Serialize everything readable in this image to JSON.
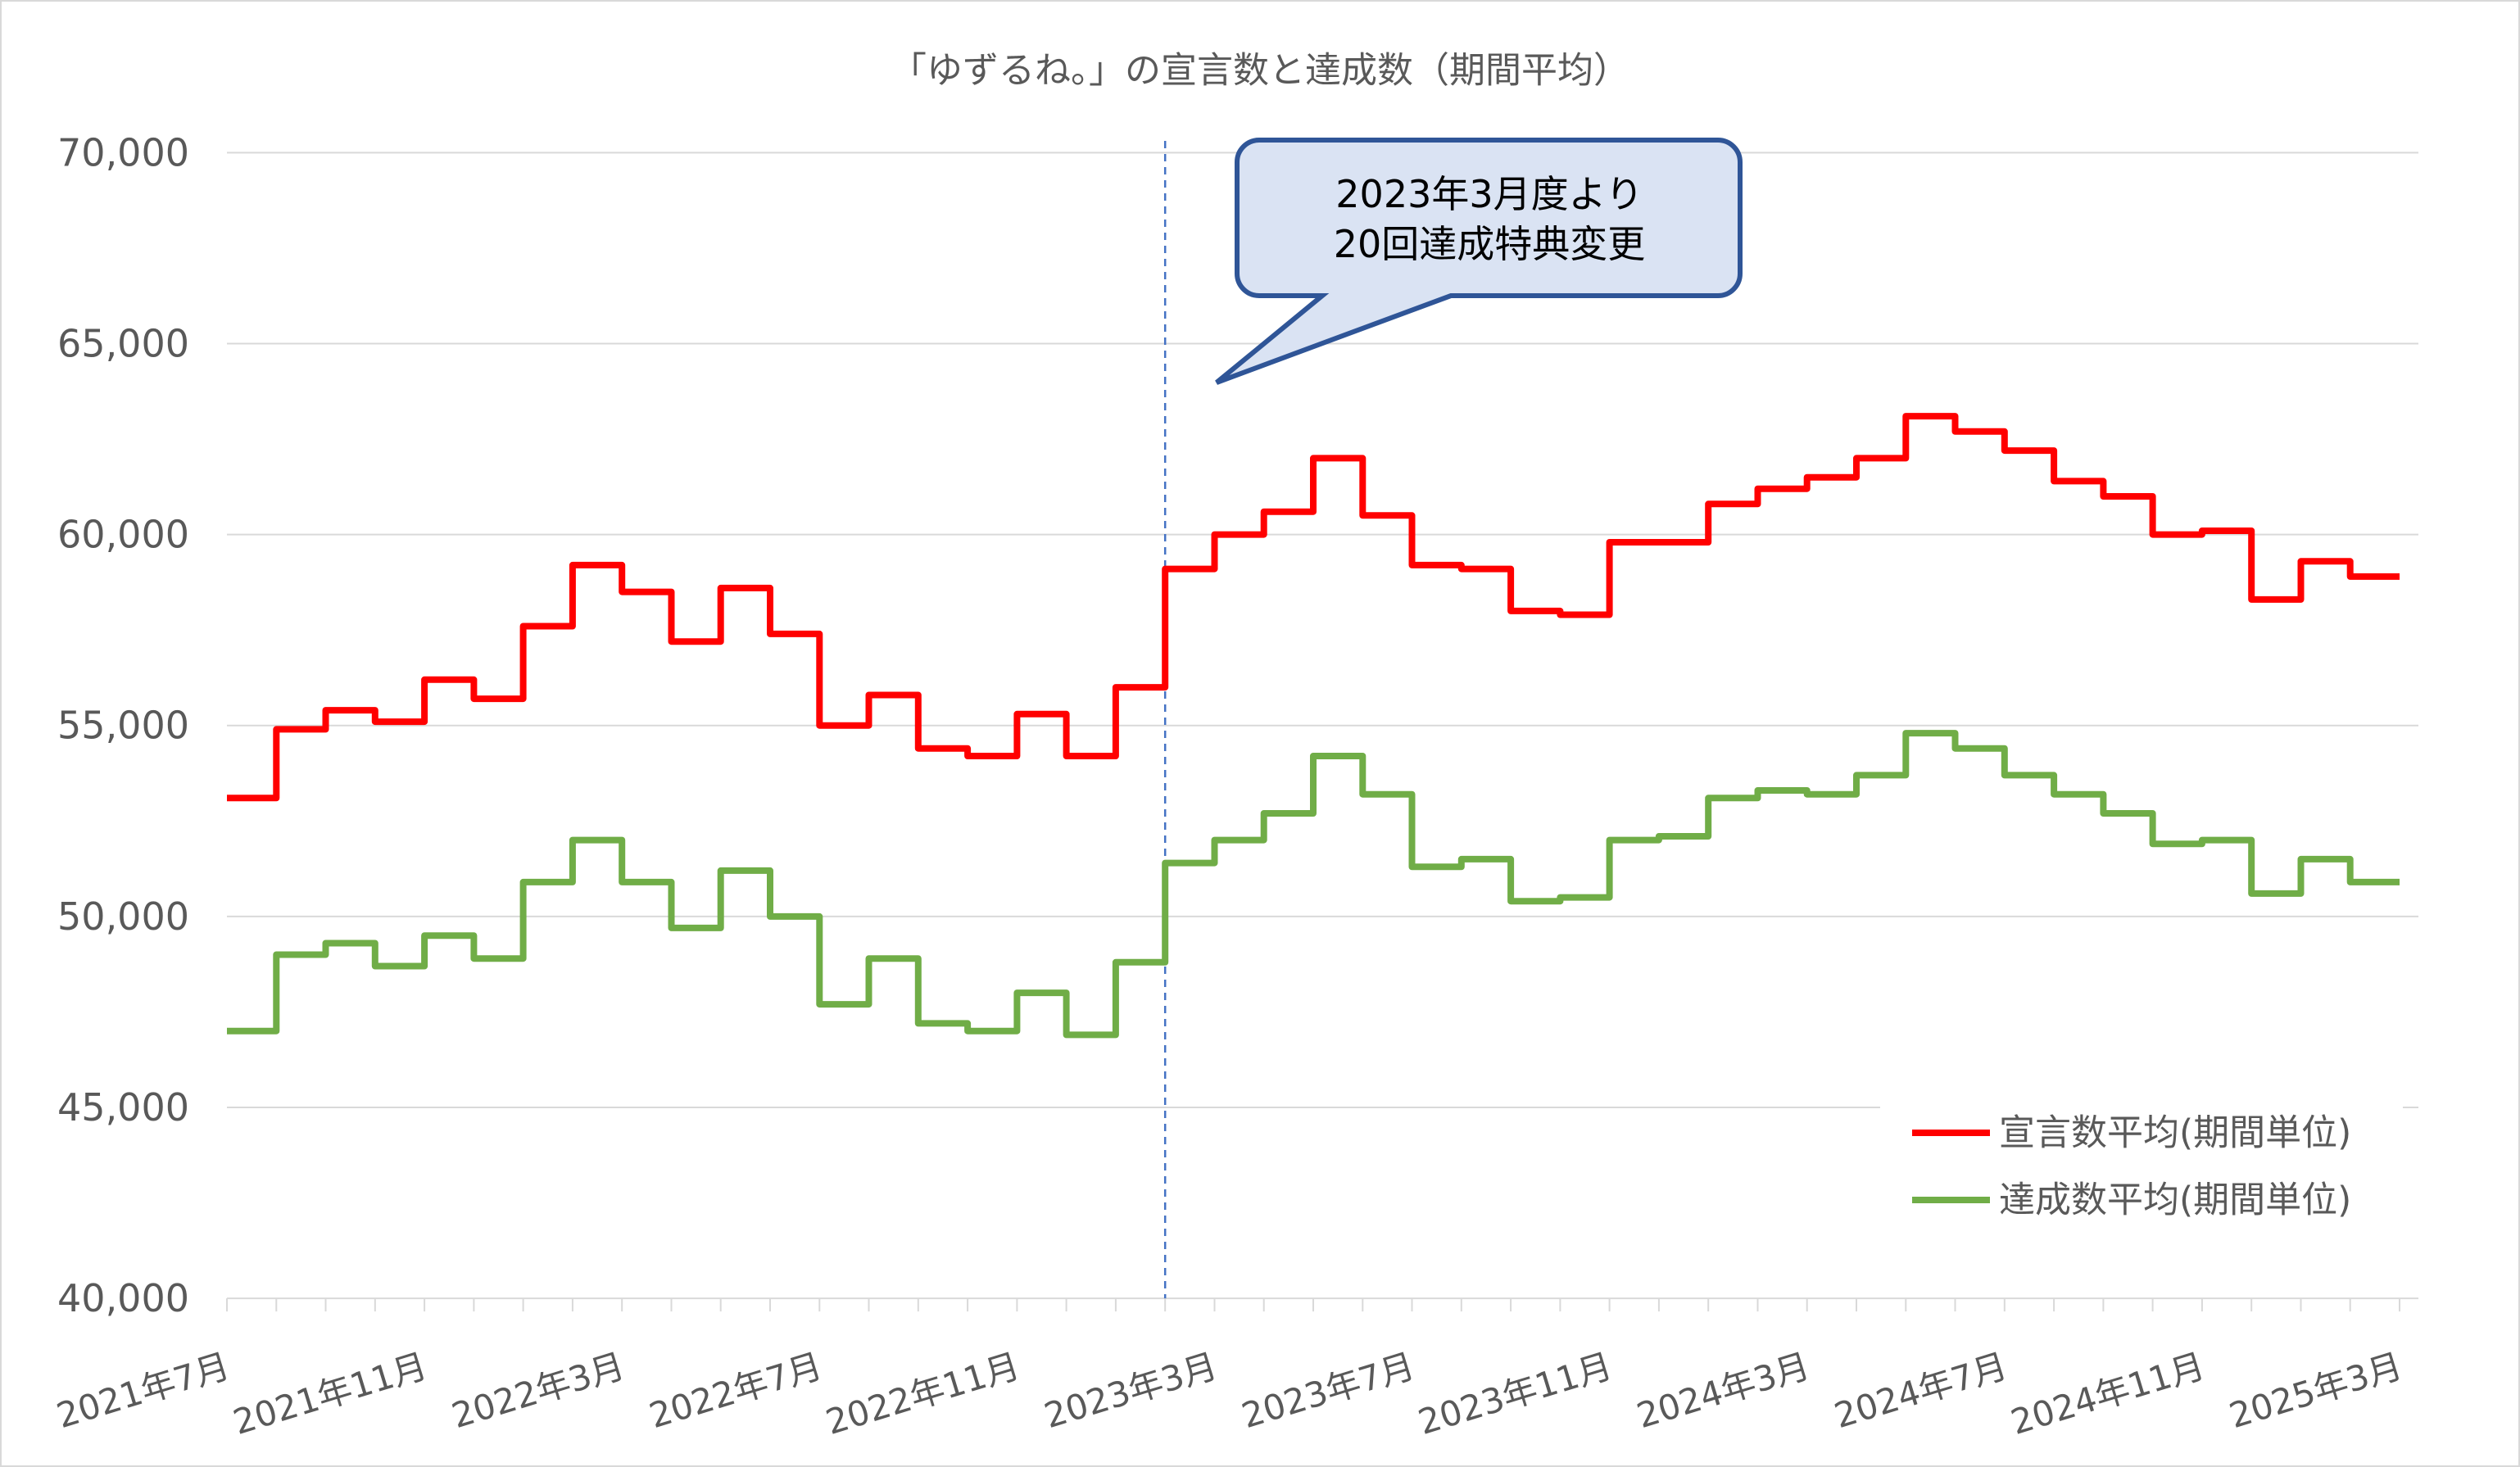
{
  "chart_data": {
    "type": "line",
    "line_shape": "step",
    "title": "「ゆずるね。」の宣言数と達成数（期間平均）",
    "ylim": [
      40000,
      70000
    ],
    "y_ticks": [
      40000,
      45000,
      50000,
      55000,
      60000,
      65000,
      70000
    ],
    "y_tick_labels": [
      "40,000",
      "45,000",
      "50,000",
      "55,000",
      "60,000",
      "65,000",
      "70,000"
    ],
    "xlim": [
      "2021-07",
      "2025-03"
    ],
    "x_ticks": [
      "2021-07",
      "2021-11",
      "2022-03",
      "2022-07",
      "2022-11",
      "2023-03",
      "2023-07",
      "2023-11",
      "2024-03",
      "2024-07",
      "2024-11",
      "2025-03"
    ],
    "x_tick_labels": [
      "2021年7月",
      "2021年11月",
      "2022年3月",
      "2022年7月",
      "2022年11月",
      "2023年3月",
      "2023年7月",
      "2023年11月",
      "2024年3月",
      "2024年7月",
      "2024年11月",
      "2025年3月"
    ],
    "grid": "horizontal",
    "legend": "bottom-right",
    "x": [
      "2021-07",
      "2021-08",
      "2021-09",
      "2021-10",
      "2021-11",
      "2021-12",
      "2022-01",
      "2022-02",
      "2022-03",
      "2022-04",
      "2022-05",
      "2022-06",
      "2022-07",
      "2022-08",
      "2022-09",
      "2022-10",
      "2022-11",
      "2022-12",
      "2023-01",
      "2023-02",
      "2023-03",
      "2023-04",
      "2023-05",
      "2023-06",
      "2023-07",
      "2023-08",
      "2023-09",
      "2023-10",
      "2023-11",
      "2023-12",
      "2024-01",
      "2024-02",
      "2024-03",
      "2024-04",
      "2024-05",
      "2024-06",
      "2024-07",
      "2024-08",
      "2024-09",
      "2024-10",
      "2024-11",
      "2024-12",
      "2025-01",
      "2025-02"
    ],
    "series": [
      {
        "name": "宣言数平均(期間単位)",
        "color": "#FF0000",
        "values": [
          53100,
          54900,
          55400,
          55100,
          56200,
          55700,
          57600,
          59200,
          58500,
          57200,
          58600,
          57400,
          55000,
          55800,
          54400,
          54200,
          55300,
          54200,
          56000,
          59100,
          60000,
          60600,
          62000,
          60500,
          59200,
          59100,
          58000,
          57900,
          59800,
          59800,
          60800,
          61200,
          61500,
          62000,
          63100,
          62700,
          62200,
          61400,
          61000,
          60000,
          60100,
          58300,
          59300,
          58900
        ]
      },
      {
        "name": "達成数平均(期間単位)",
        "color": "#70AD47",
        "values": [
          47000,
          49000,
          49300,
          48700,
          49500,
          48900,
          50900,
          52000,
          50900,
          49700,
          51200,
          50000,
          47700,
          48900,
          47200,
          47000,
          48000,
          46900,
          48800,
          51400,
          52000,
          52700,
          54200,
          53200,
          51300,
          51500,
          50400,
          50500,
          52000,
          52100,
          53100,
          53300,
          53200,
          53700,
          54800,
          54400,
          53700,
          53200,
          52700,
          51900,
          52000,
          50600,
          51500,
          50900
        ]
      }
    ],
    "reference_line": {
      "x": "2023-02",
      "color": "#4472C4",
      "style": "dashed"
    },
    "annotations": [
      {
        "text_lines": [
          "2023年3月度より",
          "20回達成特典変更"
        ],
        "fill": "#DAE3F3",
        "border": "#2F5597"
      }
    ]
  }
}
